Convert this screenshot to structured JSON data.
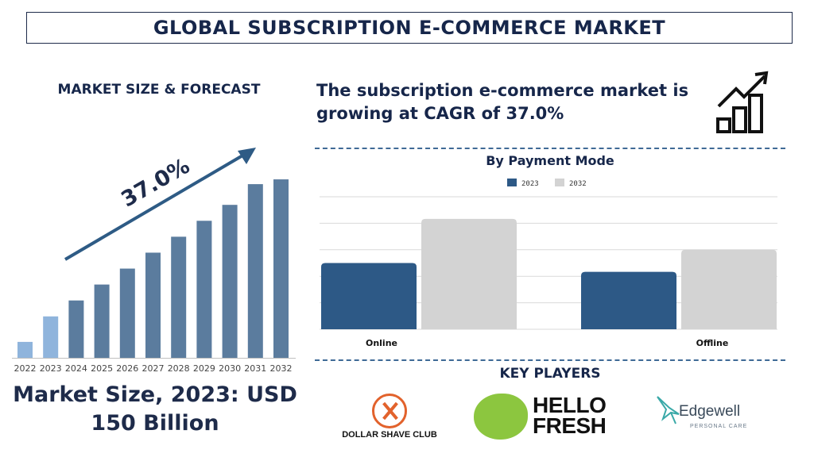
{
  "header": {
    "title": "GLOBAL SUBSCRIPTION E-COMMERCE MARKET"
  },
  "left": {
    "heading": "MARKET SIZE & FORECAST",
    "market_size_line1": "Market Size, 2023: USD",
    "market_size_line2": "150 Billion"
  },
  "right": {
    "cagr_line1": "The subscription e-commerce market is",
    "cagr_line2": "growing at CAGR of 37.0%",
    "payment_title": "By Payment Mode",
    "key_players_title": "KEY PLAYERS"
  },
  "logos": {
    "dollar_shave_club": "DOLLAR SHAVE CLUB",
    "hello_fresh_line1": "HELLO",
    "hello_fresh_line2": "FRESH",
    "edgewell_name": "Edgewell",
    "edgewell_sub": "PERSONAL CARE"
  },
  "colors": {
    "navy": "#16264a",
    "bar_dark": "#5b7c9e",
    "bar_light": "#8fb4dc",
    "arrow": "#2e5b85",
    "series_2023": "#2d5986",
    "series_2032": "#d3d3d3",
    "grid": "#d9d9d9",
    "dash": "#3f6a96",
    "dsc_orange": "#e2622c",
    "hf_green": "#8cc63f",
    "ew_teal": "#3aa9a8"
  },
  "chart_data": [
    {
      "type": "bar",
      "categories": [
        "2022",
        "2023",
        "2024",
        "2025",
        "2026",
        "2027",
        "2028",
        "2029",
        "2030",
        "2031",
        "2032"
      ],
      "values": [
        1,
        2.6,
        3.6,
        4.6,
        5.6,
        6.6,
        7.6,
        8.6,
        9.6,
        10.9,
        11.2
      ],
      "highlighted": [
        "2022",
        "2023"
      ],
      "annotation": "37.0%",
      "title": "",
      "xlabel": "",
      "ylabel": "",
      "ylim": [
        0,
        12
      ]
    },
    {
      "type": "bar",
      "categories": [
        "Online",
        "Offline"
      ],
      "series": [
        {
          "name": "2023",
          "values": [
            30,
            26
          ]
        },
        {
          "name": "2032",
          "values": [
            50,
            36
          ]
        }
      ],
      "title": "By Payment Mode",
      "xlabel": "",
      "ylabel": "",
      "ylim": [
        0,
        60
      ],
      "grid": true,
      "legend_position": "top"
    }
  ]
}
